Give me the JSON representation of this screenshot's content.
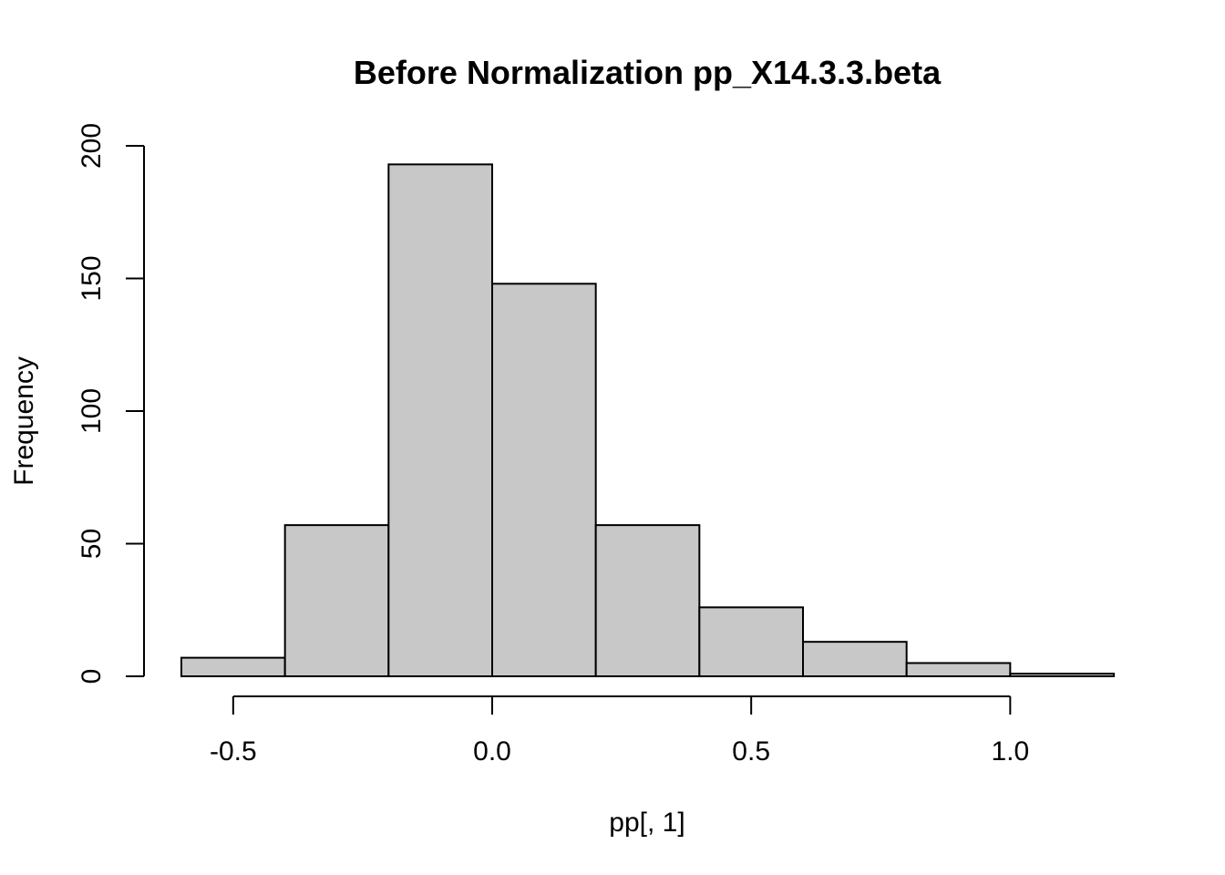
{
  "chart_data": {
    "type": "bar",
    "subtype": "histogram",
    "title": "Before Normalization pp_X14.3.3.beta",
    "xlabel": "pp[, 1]",
    "ylabel": "Frequency",
    "bin_edges": [
      -0.6,
      -0.4,
      -0.2,
      0.0,
      0.2,
      0.4,
      0.6,
      0.8,
      1.0,
      1.2
    ],
    "counts": [
      7,
      57,
      193,
      148,
      57,
      26,
      13,
      5,
      1
    ],
    "xlim": [
      -0.6,
      1.2
    ],
    "ylim": [
      0,
      200
    ],
    "x_ticks": [
      -0.5,
      0.0,
      0.5,
      1.0
    ],
    "x_tick_labels": [
      "-0.5",
      "0.0",
      "0.5",
      "1.0"
    ],
    "y_ticks": [
      0,
      50,
      100,
      150,
      200
    ],
    "y_tick_labels": [
      "0",
      "50",
      "100",
      "150",
      "200"
    ],
    "bar_color": "#c8c8c8",
    "bar_edge_color": "#000000",
    "grid": false,
    "legend": "none"
  }
}
